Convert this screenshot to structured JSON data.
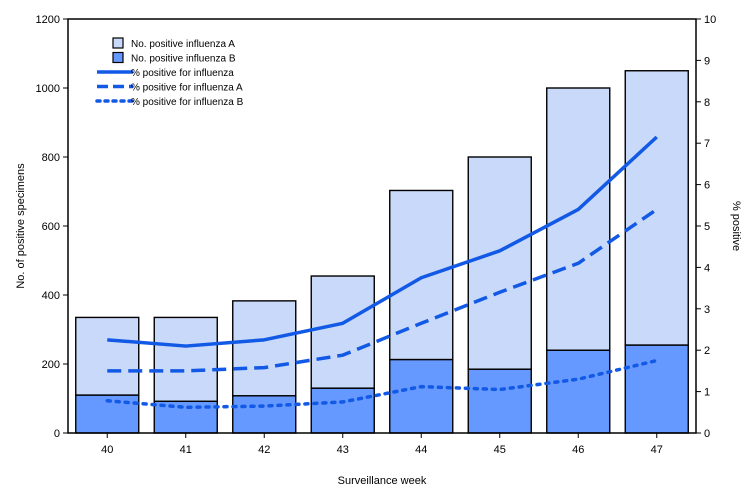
{
  "chart_data": {
    "type": "bar",
    "stacked": true,
    "xlabel": "Surveillance week",
    "ylabel": "No. of positive specimens",
    "y2label": "% positive",
    "ylim": [
      0,
      1200
    ],
    "y2lim": [
      0,
      10
    ],
    "yticks": [
      0,
      200,
      400,
      600,
      800,
      1000,
      1200
    ],
    "y2ticks": [
      0,
      1,
      2,
      3,
      4,
      5,
      6,
      7,
      8,
      9,
      10
    ],
    "categories": [
      "40",
      "41",
      "42",
      "43",
      "44",
      "45",
      "46",
      "47"
    ],
    "legend_position": "top-left",
    "bar_series": [
      {
        "name": "No. positive influenza B",
        "color": "#6699ff",
        "values": [
          110,
          92,
          108,
          130,
          213,
          185,
          240,
          255
        ]
      },
      {
        "name": "No. positive influenza A",
        "color": "#c9d9f9",
        "values": [
          225,
          243,
          275,
          325,
          490,
          615,
          760,
          795
        ]
      }
    ],
    "line_series": [
      {
        "name": "% positive for influenza",
        "style": "solid",
        "color": "#1259e6",
        "values": [
          2.25,
          2.1,
          2.25,
          2.65,
          3.75,
          4.4,
          5.4,
          7.15
        ]
      },
      {
        "name": "% positive for influenza A",
        "style": "dashed",
        "color": "#1259e6",
        "values": [
          1.5,
          1.5,
          1.58,
          1.88,
          2.65,
          3.4,
          4.1,
          5.4
        ]
      },
      {
        "name": "% positive for influenza B",
        "style": "dotted",
        "color": "#1259e6",
        "values": [
          0.78,
          0.62,
          0.65,
          0.75,
          1.12,
          1.05,
          1.3,
          1.75
        ]
      }
    ],
    "legend_order": [
      "No. positive influenza A",
      "No. positive influenza B",
      "% positive for influenza",
      "% positive for influenza A",
      "% positive for influenza B"
    ]
  }
}
